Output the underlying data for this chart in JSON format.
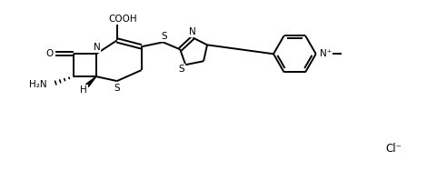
{
  "background_color": "#ffffff",
  "line_color": "#000000",
  "line_width": 1.4,
  "font_size": 7.5,
  "figsize": [
    4.7,
    1.99
  ],
  "dpi": 100,
  "xlim": [
    0,
    47
  ],
  "ylim": [
    0,
    19.9
  ],
  "cooh_label": "COOH",
  "o_label": "O",
  "n_label": "N",
  "s_label": "S",
  "h_label": "H",
  "h2n_label": "H₂N",
  "nplus_label": "N⁺",
  "cl_label": "Cl⁻"
}
